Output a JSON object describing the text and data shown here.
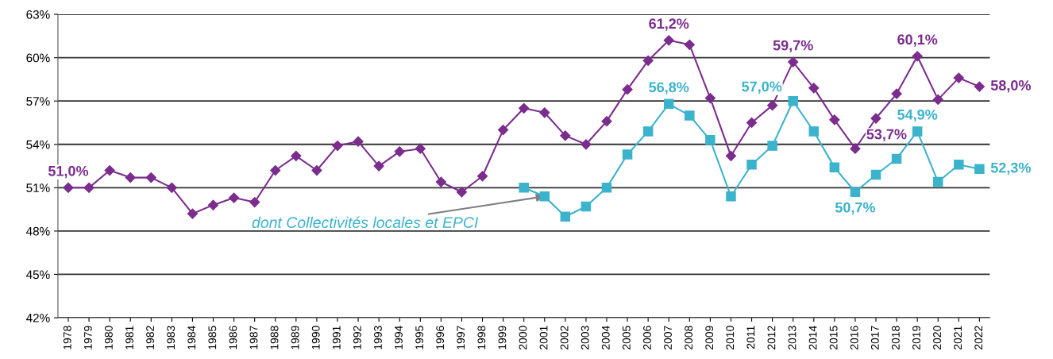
{
  "chart_data": {
    "type": "line",
    "categories": [
      "1978",
      "1979",
      "1980",
      "1981",
      "1982",
      "1983",
      "1984",
      "1985",
      "1986",
      "1987",
      "1988",
      "1989",
      "1990",
      "1991",
      "1992",
      "1993",
      "1994",
      "1995",
      "1996",
      "1997",
      "1998",
      "1999",
      "2000",
      "2001",
      "2002",
      "2003",
      "2004",
      "2005",
      "2006",
      "2007",
      "2008",
      "2009",
      "2010",
      "2011",
      "2012",
      "2013",
      "2014",
      "2015",
      "2016",
      "2017",
      "2018",
      "2019",
      "2020",
      "2021",
      "2022"
    ],
    "series": [
      {
        "color": "#7b2d8e",
        "marker": "diamond",
        "values": [
          51.0,
          51.0,
          52.2,
          51.7,
          51.7,
          51.0,
          49.2,
          49.8,
          50.3,
          50.0,
          52.2,
          53.2,
          52.2,
          53.9,
          54.2,
          52.5,
          53.5,
          53.7,
          51.4,
          50.7,
          51.8,
          55.0,
          56.5,
          56.2,
          54.6,
          54.0,
          55.6,
          57.8,
          59.8,
          61.2,
          60.9,
          57.2,
          53.2,
          55.5,
          56.7,
          59.7,
          57.9,
          55.7,
          53.7,
          55.8,
          57.5,
          60.1,
          57.1,
          58.6,
          58.0
        ],
        "value_labels": [
          "51,0%",
          null,
          null,
          null,
          null,
          null,
          null,
          null,
          null,
          null,
          null,
          null,
          null,
          null,
          null,
          null,
          null,
          null,
          null,
          null,
          null,
          null,
          null,
          null,
          null,
          null,
          null,
          null,
          null,
          "61,2%",
          null,
          null,
          null,
          null,
          null,
          "59,7%",
          null,
          null,
          "53,7%",
          null,
          null,
          "60,1%",
          null,
          null,
          "58,0%"
        ]
      },
      {
        "color": "#3bb3cc",
        "marker": "square",
        "values": [
          null,
          null,
          null,
          null,
          null,
          null,
          null,
          null,
          null,
          null,
          null,
          null,
          null,
          null,
          null,
          null,
          null,
          null,
          null,
          null,
          null,
          null,
          51.0,
          50.4,
          49.0,
          49.7,
          51.0,
          53.3,
          54.9,
          56.8,
          56.0,
          54.3,
          50.4,
          52.6,
          53.9,
          57.0,
          54.9,
          52.4,
          50.7,
          51.9,
          53.0,
          54.9,
          51.4,
          52.6,
          52.3
        ],
        "value_labels": [
          null,
          null,
          null,
          null,
          null,
          null,
          null,
          null,
          null,
          null,
          null,
          null,
          null,
          null,
          null,
          null,
          null,
          null,
          null,
          null,
          null,
          null,
          null,
          null,
          null,
          null,
          null,
          null,
          null,
          "56,8%",
          null,
          null,
          null,
          null,
          null,
          "57,0%",
          null,
          null,
          "50,7%",
          null,
          null,
          "54,9%",
          null,
          null,
          "52,3%"
        ]
      }
    ],
    "annotations": [
      {
        "text": "dont Collectivités locales et EPCI",
        "x": "2001",
        "y": 50.4
      }
    ],
    "ylim": [
      42,
      63
    ],
    "yticks": [
      {
        "value": 42,
        "label": "42%"
      },
      {
        "value": 45,
        "label": "45%"
      },
      {
        "value": 48,
        "label": "48%"
      },
      {
        "value": 51,
        "label": "51%"
      },
      {
        "value": 54,
        "label": "54%"
      },
      {
        "value": 57,
        "label": "57%"
      },
      {
        "value": 60,
        "label": "60%"
      },
      {
        "value": 63,
        "label": "63%"
      }
    ],
    "grid": "y"
  }
}
